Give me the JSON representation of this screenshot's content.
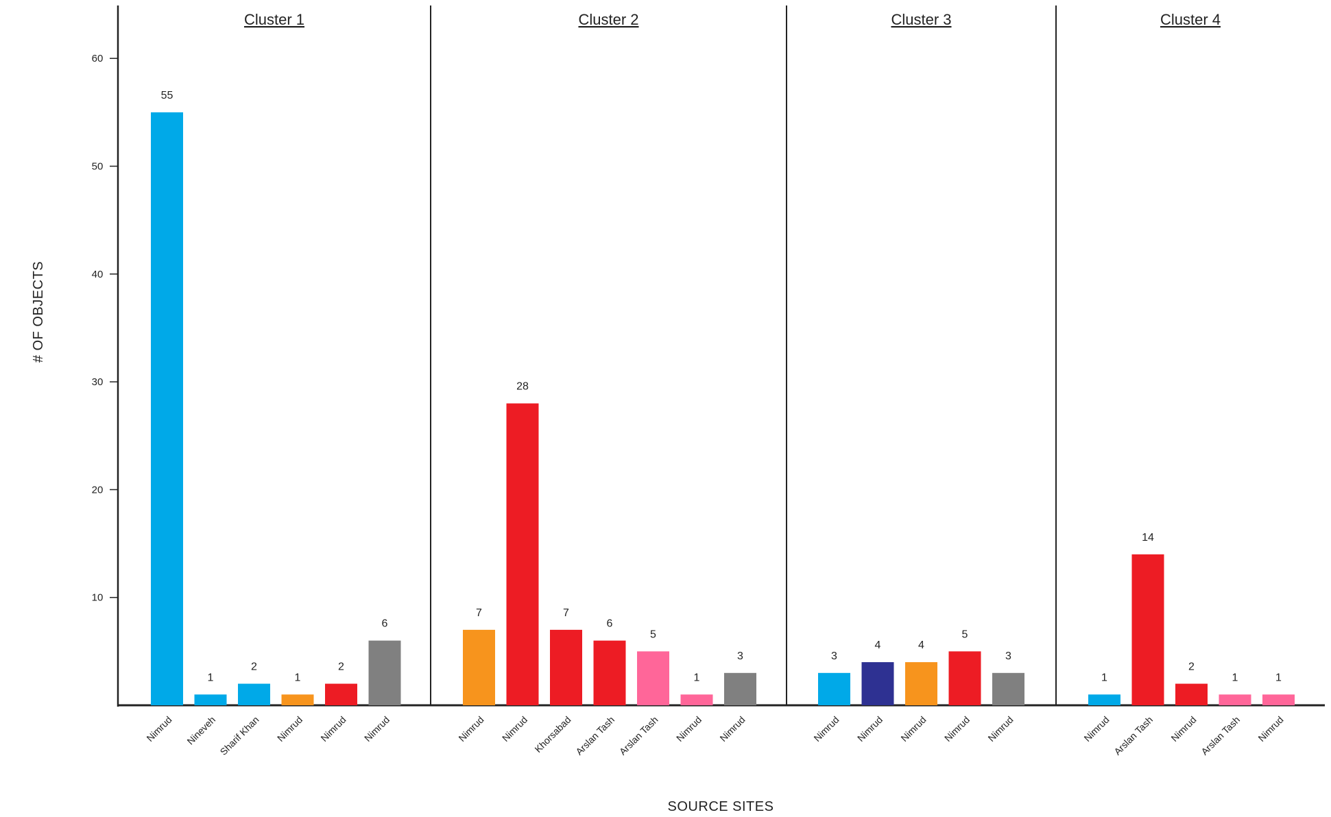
{
  "chart_data": {
    "type": "bar",
    "xlabel": "SOURCE SITES",
    "ylabel": "# OF OBJECTS",
    "ylim": [
      0,
      65
    ],
    "yticks": [
      10,
      20,
      30,
      40,
      50,
      60
    ],
    "grid": false,
    "legend": "none",
    "colors": {
      "blue": "#00a9e8",
      "darkblue": "#2e3192",
      "orange": "#f7941d",
      "red": "#ed1c24",
      "pink": "#ff6699",
      "gray": "#808080"
    },
    "clusters": [
      {
        "name": "Cluster 1",
        "bars": [
          {
            "site": "Nimrud",
            "value": 55,
            "color": "#00a9e8"
          },
          {
            "site": "Nineveh",
            "value": 1,
            "color": "#00a9e8"
          },
          {
            "site": "Sharif Khan",
            "value": 2,
            "color": "#00a9e8"
          },
          {
            "site": "Nimrud",
            "value": 1,
            "color": "#f7941d"
          },
          {
            "site": "Nimrud",
            "value": 2,
            "color": "#ed1c24"
          },
          {
            "site": "Nimrud",
            "value": 6,
            "color": "#808080"
          }
        ]
      },
      {
        "name": "Cluster 2",
        "bars": [
          {
            "site": "Nimrud",
            "value": 7,
            "color": "#f7941d"
          },
          {
            "site": "Nimrud",
            "value": 28,
            "color": "#ed1c24"
          },
          {
            "site": "Khorsabad",
            "value": 7,
            "color": "#ed1c24"
          },
          {
            "site": "Arslan Tash",
            "value": 6,
            "color": "#ed1c24"
          },
          {
            "site": "Arslan Tash",
            "value": 5,
            "color": "#ff6699"
          },
          {
            "site": "Nimrud",
            "value": 1,
            "color": "#ff6699"
          },
          {
            "site": "Nimrud",
            "value": 3,
            "color": "#808080"
          }
        ]
      },
      {
        "name": "Cluster 3",
        "bars": [
          {
            "site": "Nimrud",
            "value": 3,
            "color": "#00a9e8"
          },
          {
            "site": "Nimrud",
            "value": 4,
            "color": "#2e3192"
          },
          {
            "site": "Nimrud",
            "value": 4,
            "color": "#f7941d"
          },
          {
            "site": "Nimrud",
            "value": 5,
            "color": "#ed1c24"
          },
          {
            "site": "Nimrud",
            "value": 3,
            "color": "#808080"
          }
        ]
      },
      {
        "name": "Cluster 4",
        "bars": [
          {
            "site": "Nimrud",
            "value": 1,
            "color": "#00a9e8"
          },
          {
            "site": "Arslan Tash",
            "value": 14,
            "color": "#ed1c24"
          },
          {
            "site": "Nimrud",
            "value": 2,
            "color": "#ed1c24"
          },
          {
            "site": "Arslan Tash",
            "value": 1,
            "color": "#ff6699"
          },
          {
            "site": "Nimrud",
            "value": 1,
            "color": "#ff6699"
          }
        ]
      }
    ]
  }
}
